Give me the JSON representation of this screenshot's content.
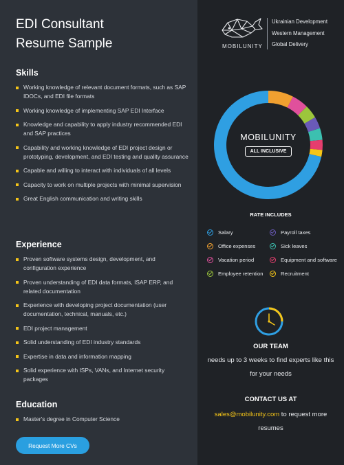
{
  "title": {
    "line1": "EDI Consultant",
    "line2": "Resume Sample"
  },
  "skills": {
    "heading": "Skills",
    "items": [
      "Working knowledge of relevant document formats, such as SAP IDOCs, and EDI file formats",
      "Working knowledge of implementing SAP EDI Interface",
      "Knowledge and capability to apply industry recommended EDI and SAP practices",
      "Capability and working knowledge of EDI project design or prototyping, development, and EDI testing and quality assurance",
      "Capable and willing to interact with individuals of all levels",
      "Capacity to work on multiple projects with minimal supervision",
      "Great English communication and writing skills"
    ]
  },
  "experience": {
    "heading": "Experience",
    "items": [
      "Proven software systems design, development, and configuration experience",
      "Proven understanding of EDI data formats, ISAP ERP, and related documentation",
      "Experience with developing project documentation (user documentation, technical, manuals, etc.)",
      "EDI project management",
      "Solid understanding of EDI industry standards",
      "Expertise in data and information mapping",
      "Solid experience with ISPs, VANs, and Internet security packages"
    ]
  },
  "education": {
    "heading": "Education",
    "items": [
      "Master's degree in Computer Science"
    ]
  },
  "cta_button": "Request More CVs",
  "brand": {
    "logo_text": "MOBILUNITY",
    "tagline": [
      "Ukrainian Development",
      "Western Management",
      "Global Delivery"
    ]
  },
  "donut": {
    "brand": "MOBILUNITY",
    "badge": "ALL INCLUSIVE",
    "segments": [
      {
        "color": "#f0a030",
        "share": 0.075
      },
      {
        "color": "#e0509c",
        "share": 0.05
      },
      {
        "color": "#9cc63c",
        "share": 0.04
      },
      {
        "color": "#6a5ab8",
        "share": 0.035
      },
      {
        "color": "#3cc0b0",
        "share": 0.035
      },
      {
        "color": "#e53e6e",
        "share": 0.03
      },
      {
        "color": "#f5c518",
        "share": 0.02
      },
      {
        "color": "#2f9fe2",
        "share": 0.715
      }
    ]
  },
  "rate": {
    "heading": "RATE INCLUDES",
    "items": [
      {
        "label": "Salary",
        "color": "#2f9fe2"
      },
      {
        "label": "Payroll taxes",
        "color": "#6a5ab8"
      },
      {
        "label": "Office expenses",
        "color": "#f0a030"
      },
      {
        "label": "Sick leaves",
        "color": "#3cc0b0"
      },
      {
        "label": "Vacation period",
        "color": "#e0509c"
      },
      {
        "label": "Equipment and software",
        "color": "#e53e6e"
      },
      {
        "label": "Employee retention",
        "color": "#9cc63c"
      },
      {
        "label": "Recruitment",
        "color": "#f5c518"
      }
    ]
  },
  "team": {
    "heading": "OUR TEAM",
    "text": "needs up to 3 weeks to find experts like this for your needs"
  },
  "contact": {
    "heading": "CONTACT US AT",
    "email": "sales@mobilunity.com",
    "text": " to request more resumes"
  },
  "colors": {
    "accent": "#f5c518",
    "button": "#2a9fe0",
    "left_bg": "#2d3239",
    "right_bg": "#1f2226"
  }
}
